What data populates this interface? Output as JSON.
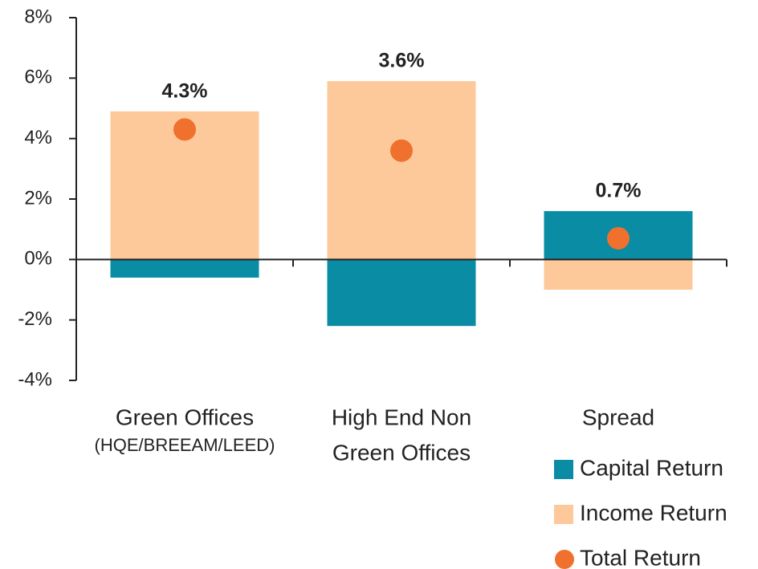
{
  "chart_data": {
    "type": "stacked_bar",
    "categories": [
      [
        "Green Offices",
        "(HQE/BREEAM/LEED)"
      ],
      [
        "High End Non",
        "Green Offices"
      ],
      [
        "Spread"
      ]
    ],
    "series": [
      {
        "name": "Capital Return",
        "color": "#0a8ca4",
        "kind": "bar",
        "values": [
          -0.6,
          -2.2,
          1.6
        ]
      },
      {
        "name": "Income Return",
        "color": "#fdc99b",
        "kind": "bar",
        "values": [
          4.9,
          5.9,
          -1.0
        ]
      },
      {
        "name": "Total Return",
        "color": "#f0702e",
        "kind": "dot",
        "values": [
          4.3,
          3.6,
          0.7
        ],
        "value_labels": [
          "4.3%",
          "3.6%",
          "0.7%"
        ]
      }
    ],
    "ylim": [
      -4,
      8
    ],
    "yticks": [
      {
        "value": -4,
        "label": "-4%"
      },
      {
        "value": -2,
        "label": "-2%"
      },
      {
        "value": 0,
        "label": "0%"
      },
      {
        "value": 2,
        "label": "2%"
      },
      {
        "value": 4,
        "label": "4%"
      },
      {
        "value": 6,
        "label": "6%"
      },
      {
        "value": 8,
        "label": "8%"
      }
    ],
    "legend": "bottom right"
  }
}
